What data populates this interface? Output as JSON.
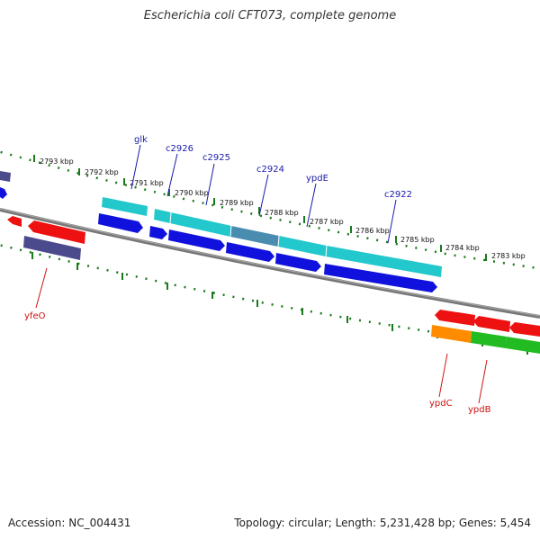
{
  "title": "Escherichia coli CFT073, complete genome",
  "footer": {
    "accession": "Accession: NC_004431",
    "topology": "Topology: circular; Length: 5,231,428 bp; Genes: 5,454"
  },
  "colors": {
    "backbone": "#777777",
    "tick": "#1a7a1a",
    "label_top": "#1a1aaa",
    "label_bottom": "#cc1111",
    "cds_blue": "#1111dd",
    "cds_cyan": "#22c8cc",
    "cds_red": "#ee1111",
    "cds_orange": "#ff8c00",
    "cds_green": "#22bb22",
    "cds_navy": "#4a4a8c"
  },
  "scale_labels": [
    "2793 kbp",
    "2792 kbp",
    "2791 kbp",
    "2790 kbp",
    "2789 kbp",
    "2788 kbp",
    "2787 kbp",
    "2786 kbp",
    "2785 kbp",
    "2784 kbp",
    "2783 kbp"
  ],
  "gene_labels_top": [
    "glk",
    "c2926",
    "c2925",
    "c2924",
    "ypdE",
    "c2922"
  ],
  "gene_labels_bottom": [
    "yfeO",
    "ypdC",
    "ypdB"
  ]
}
